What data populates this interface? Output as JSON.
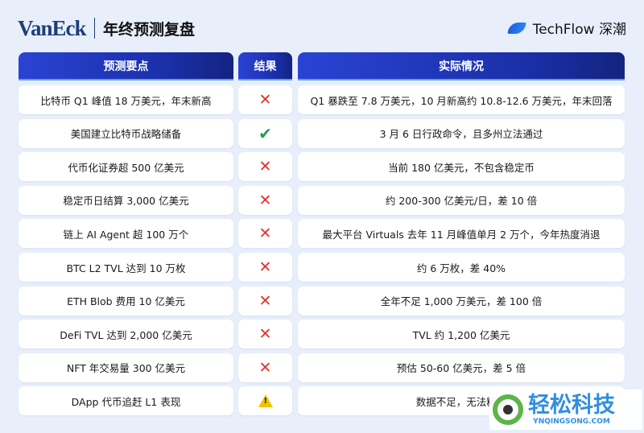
{
  "header": {
    "logo": "VanEck",
    "title": "年终预测复盘",
    "brand": "TechFlow 深潮"
  },
  "columns": [
    "预测要点",
    "结果",
    "实际情况"
  ],
  "rows": [
    {
      "prediction": "比特币 Q1 峰值 18 万美元，年末新高",
      "result": "fail",
      "actual": "Q1 暴跌至 7.8 万美元，10 月新高约 10.8-12.6 万美元，年末回落"
    },
    {
      "prediction": "美国建立比特币战略储备",
      "result": "pass",
      "actual": "3 月 6 日行政命令，且多州立法通过"
    },
    {
      "prediction": "代币化证券超 500 亿美元",
      "result": "fail",
      "actual": "当前 180 亿美元，不包含稳定币"
    },
    {
      "prediction": "稳定币日结算 3,000 亿美元",
      "result": "fail",
      "actual": "约 200-300 亿美元/日，差 10 倍"
    },
    {
      "prediction": "链上 AI Agent 超 100 万个",
      "result": "fail",
      "actual": "最大平台 Virtuals 去年 11 月峰值单月 2 万个，今年热度消退"
    },
    {
      "prediction": "BTC L2 TVL 达到 10 万枚",
      "result": "fail",
      "actual": "约 6 万枚，差 40%"
    },
    {
      "prediction": "ETH Blob 费用 10 亿美元",
      "result": "fail",
      "actual": "全年不足 1,000 万美元，差 100 倍"
    },
    {
      "prediction": "DeFi TVL 达到 2,000 亿美元",
      "result": "fail",
      "actual": "TVL 约 1,200 亿美元"
    },
    {
      "prediction": "NFT 年交易量 300 亿美元",
      "result": "fail",
      "actual": "预估 50-60 亿美元，差 5 倍"
    },
    {
      "prediction": "DApp 代币追赶 L1 表现",
      "result": "warn",
      "actual": "数据不足，无法精确"
    }
  ],
  "icons": {
    "fail": "✕",
    "pass": "✔",
    "warn": "!"
  },
  "watermark": {
    "name": "轻松科技",
    "url": "YNQINGSONG.COM"
  }
}
